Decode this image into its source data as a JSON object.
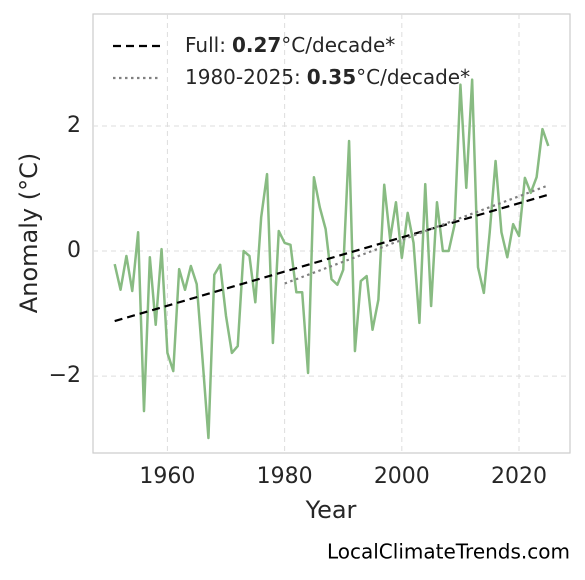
{
  "chart_data": {
    "type": "line",
    "xlabel": "Year",
    "ylabel": "Anomaly (°C)",
    "watermark": "LocalClimateTrends.com",
    "x": [
      1951,
      1952,
      1953,
      1954,
      1955,
      1956,
      1957,
      1958,
      1959,
      1960,
      1961,
      1962,
      1963,
      1964,
      1965,
      1966,
      1967,
      1968,
      1969,
      1970,
      1971,
      1972,
      1973,
      1974,
      1975,
      1976,
      1977,
      1978,
      1979,
      1980,
      1981,
      1982,
      1983,
      1984,
      1985,
      1986,
      1987,
      1988,
      1989,
      1990,
      1991,
      1992,
      1993,
      1994,
      1995,
      1996,
      1997,
      1998,
      1999,
      2000,
      2001,
      2002,
      2003,
      2004,
      2005,
      2006,
      2007,
      2008,
      2009,
      2010,
      2011,
      2012,
      2013,
      2014,
      2015,
      2016,
      2017,
      2018,
      2019,
      2020,
      2021,
      2022,
      2023,
      2024,
      2025
    ],
    "values": [
      -0.21,
      -0.62,
      -0.08,
      -0.64,
      0.3,
      -2.56,
      -0.1,
      -1.18,
      0.03,
      -1.63,
      -1.92,
      -0.29,
      -0.62,
      -0.24,
      -0.53,
      -1.74,
      -2.99,
      -0.38,
      -0.22,
      -1.04,
      -1.63,
      -1.52,
      0.0,
      -0.08,
      -0.82,
      0.54,
      1.23,
      -1.47,
      0.32,
      0.13,
      0.1,
      -0.66,
      -0.66,
      -1.95,
      1.18,
      0.7,
      0.35,
      -0.45,
      -0.54,
      -0.3,
      1.76,
      -1.6,
      -0.48,
      -0.4,
      -1.26,
      -0.78,
      1.06,
      0.19,
      0.78,
      -0.11,
      0.61,
      0.13,
      -1.15,
      1.07,
      -0.88,
      0.78,
      0.0,
      0.0,
      0.42,
      2.66,
      1.01,
      2.74,
      -0.26,
      -0.67,
      0.3,
      1.44,
      0.3,
      -0.1,
      0.43,
      0.24,
      1.17,
      0.93,
      1.18,
      1.95,
      1.68
    ],
    "color": "#88bb82",
    "trends": [
      {
        "label": "Full:",
        "rate": 0.27,
        "unit": "°C/decade*",
        "x": [
          1951,
          2025
        ],
        "values": [
          -1.12,
          0.9
        ],
        "color": "#000000",
        "style": "dashed"
      },
      {
        "label": "1980-2025:",
        "rate": 0.35,
        "unit": "°C/decade*",
        "x": [
          1980,
          2025
        ],
        "values": [
          -0.52,
          1.05
        ],
        "color": "#808080",
        "style": "dotted"
      }
    ],
    "xlim": [
      1947.3,
      2028.7
    ],
    "ylim": [
      -3.23,
      3.79
    ],
    "xticks": [
      1960,
      1980,
      2000,
      2020
    ],
    "yticks": [
      {
        "value": -2,
        "label": "−2"
      },
      0,
      2
    ],
    "grid": true
  }
}
